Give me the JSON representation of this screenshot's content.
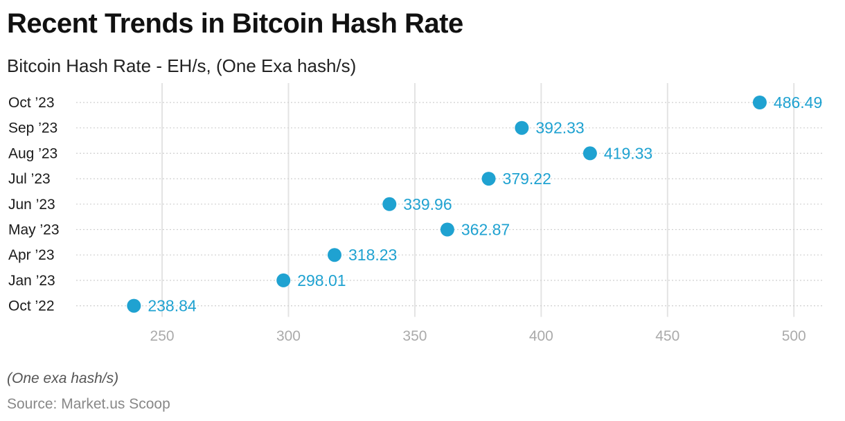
{
  "title": "Recent Trends in Bitcoin Hash Rate",
  "subtitle": "Bitcoin Hash Rate - EH/s, (One Exa hash/s)",
  "footnote": "(One exa hash/s)",
  "source": "Source: Market.us Scoop",
  "chart_data": {
    "type": "scatter",
    "title": "Recent Trends in Bitcoin Hash Rate",
    "subtitle": "Bitcoin Hash Rate - EH/s, (One Exa hash/s)",
    "xlabel": "",
    "ylabel": "",
    "categories": [
      "Oct ’23",
      "Sep ’23",
      "Aug ’23",
      "Jul ’23",
      "Jun ’23",
      "May ’23",
      "Apr ’23",
      "Jan ’23",
      "Oct ’22"
    ],
    "values": [
      486.49,
      392.33,
      419.33,
      379.22,
      339.96,
      362.87,
      318.23,
      298.01,
      238.84
    ],
    "value_labels": [
      "486.49",
      "392.33",
      "419.33",
      "379.22",
      "339.96",
      "362.87",
      "318.23",
      "298.01",
      "238.84"
    ],
    "xlim": [
      216,
      512
    ],
    "x_ticks": [
      250,
      300,
      350,
      400,
      450,
      500
    ],
    "grid": true,
    "legend": "none",
    "point_color": "#1fa2d1"
  }
}
